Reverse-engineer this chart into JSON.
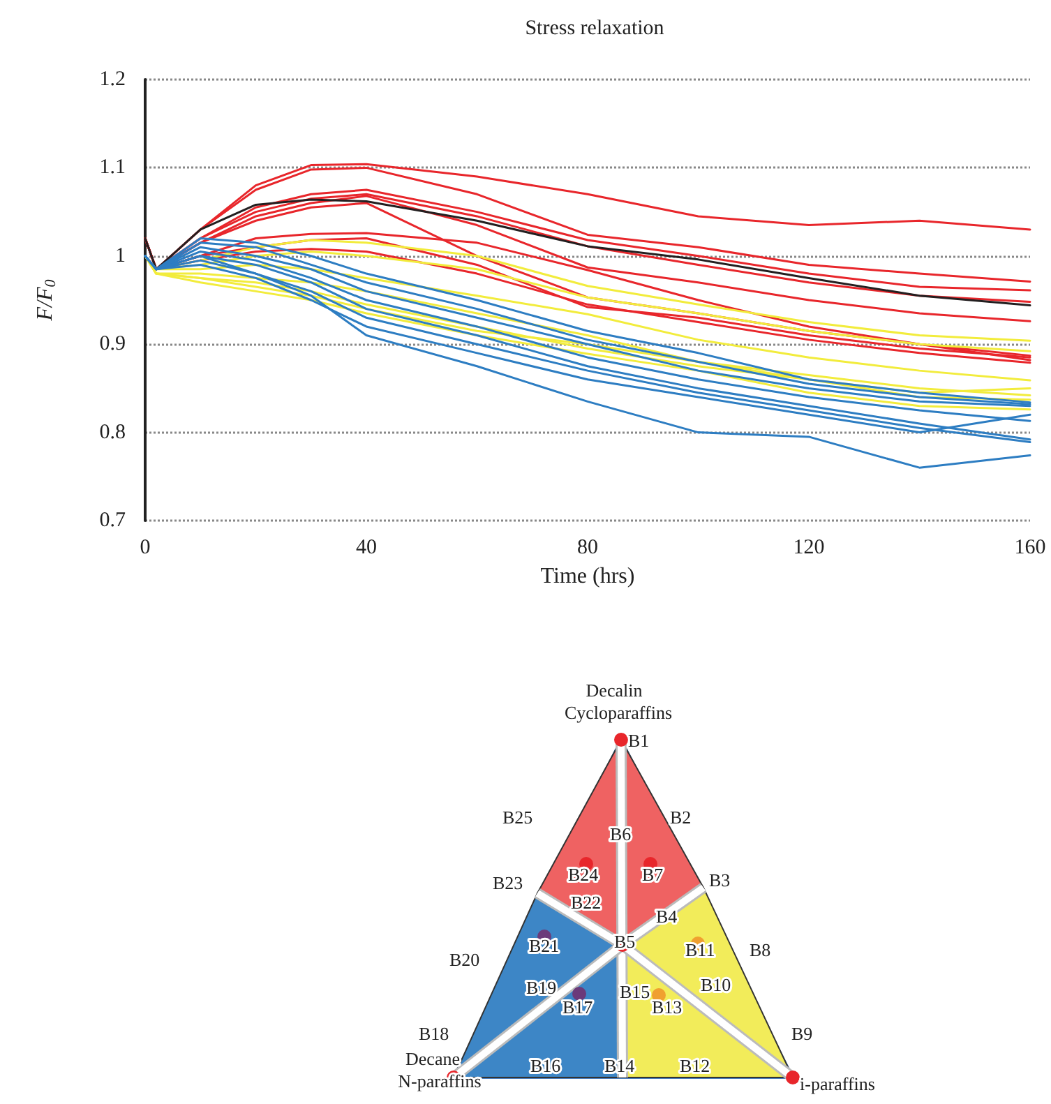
{
  "chart_data": [
    {
      "type": "line",
      "title": "Stress relaxation",
      "xlabel": "Time (hrs)",
      "ylabel": "F/F$_{0}$",
      "x": [
        0,
        2,
        10,
        20,
        30,
        40,
        60,
        80,
        100,
        120,
        140,
        160
      ],
      "xlim": [
        0,
        160
      ],
      "xticks": [
        0,
        40,
        80,
        120,
        160
      ],
      "ylim": [
        0.7,
        1.2
      ],
      "yticks": [
        0.7,
        0.8,
        0.9,
        1,
        1.1,
        1.2
      ],
      "grid": "y",
      "line_style": "solid",
      "marker": "none",
      "series": [
        {
          "color": "#e8262b",
          "values": [
            1.02,
            0.985,
            1.03,
            1.08,
            1.103,
            1.104,
            1.09,
            1.07,
            1.045,
            1.035,
            1.04,
            1.03
          ]
        },
        {
          "color": "#e8262b",
          "values": [
            1.02,
            0.985,
            1.03,
            1.075,
            1.098,
            1.1,
            1.07,
            1.024,
            1.01,
            0.99,
            0.98,
            0.971
          ]
        },
        {
          "color": "#e8262b",
          "values": [
            1.02,
            0.985,
            1.02,
            1.055,
            1.07,
            1.075,
            1.05,
            1.018,
            1.0,
            0.98,
            0.965,
            0.961
          ]
        },
        {
          "color": "#e8262b",
          "values": [
            1.02,
            0.985,
            1.02,
            1.05,
            1.065,
            1.07,
            1.045,
            1.011,
            0.99,
            0.97,
            0.955,
            0.948
          ]
        },
        {
          "color": "#e8262b",
          "values": [
            1.02,
            0.985,
            1.015,
            1.045,
            1.06,
            1.068,
            1.035,
            0.987,
            0.97,
            0.95,
            0.935,
            0.926
          ]
        },
        {
          "color": "#e8262b",
          "values": [
            1.02,
            0.985,
            1.0,
            1.02,
            1.025,
            1.026,
            1.015,
            0.984,
            0.95,
            0.92,
            0.9,
            0.887
          ]
        },
        {
          "color": "#e8262b",
          "values": [
            1.02,
            0.985,
            1.015,
            1.04,
            1.055,
            1.06,
            1.0,
            0.953,
            0.935,
            0.915,
            0.9,
            0.882
          ]
        },
        {
          "color": "#e8262b",
          "values": [
            1.02,
            0.985,
            0.995,
            1.005,
            1.008,
            1.005,
            0.98,
            0.945,
            0.925,
            0.905,
            0.89,
            0.879
          ]
        },
        {
          "color": "#e8262b",
          "values": [
            1.02,
            0.985,
            1.0,
            1.01,
            1.018,
            1.02,
            0.99,
            0.942,
            0.93,
            0.91,
            0.895,
            0.885
          ]
        },
        {
          "color": "#231f20",
          "values": [
            1.02,
            0.985,
            1.03,
            1.058,
            1.064,
            1.062,
            1.04,
            1.011,
            0.996,
            0.975,
            0.955,
            0.944
          ]
        },
        {
          "color": "#f2ec3c",
          "values": [
            1.0,
            0.985,
            0.995,
            1.01,
            1.018,
            1.015,
            1.0,
            0.966,
            0.945,
            0.925,
            0.91,
            0.904
          ]
        },
        {
          "color": "#f2ec3c",
          "values": [
            1.0,
            0.985,
            0.99,
            1.0,
            1.005,
            1.0,
            0.985,
            0.953,
            0.935,
            0.915,
            0.9,
            0.892
          ]
        },
        {
          "color": "#f2ec3c",
          "values": [
            1.0,
            0.985,
            0.985,
            0.99,
            0.985,
            0.975,
            0.955,
            0.934,
            0.905,
            0.885,
            0.87,
            0.859
          ]
        },
        {
          "color": "#f2ec3c",
          "values": [
            1.0,
            0.98,
            0.98,
            0.975,
            0.97,
            0.96,
            0.935,
            0.91,
            0.88,
            0.865,
            0.85,
            0.842
          ]
        },
        {
          "color": "#f2ec3c",
          "values": [
            1.0,
            0.98,
            0.975,
            0.97,
            0.96,
            0.945,
            0.92,
            0.895,
            0.875,
            0.86,
            0.84,
            0.837
          ]
        },
        {
          "color": "#f2ec3c",
          "values": [
            1.0,
            0.98,
            0.97,
            0.96,
            0.95,
            0.935,
            0.91,
            0.889,
            0.87,
            0.845,
            0.83,
            0.826
          ]
        },
        {
          "color": "#f2ec3c",
          "values": [
            1.0,
            0.98,
            0.975,
            0.965,
            0.955,
            0.94,
            0.915,
            0.9,
            0.88,
            0.86,
            0.845,
            0.85
          ]
        },
        {
          "color": "#2d7dc2",
          "values": [
            1.0,
            0.985,
            1.02,
            1.015,
            1.0,
            0.98,
            0.95,
            0.915,
            0.89,
            0.86,
            0.845,
            0.834
          ]
        },
        {
          "color": "#2d7dc2",
          "values": [
            1.0,
            0.985,
            1.015,
            1.01,
            0.99,
            0.97,
            0.94,
            0.905,
            0.88,
            0.855,
            0.84,
            0.832
          ]
        },
        {
          "color": "#2d7dc2",
          "values": [
            1.0,
            0.985,
            1.01,
            1.0,
            0.985,
            0.96,
            0.93,
            0.9,
            0.87,
            0.85,
            0.835,
            0.83
          ]
        },
        {
          "color": "#2d7dc2",
          "values": [
            1.0,
            0.985,
            1.005,
            0.995,
            0.975,
            0.95,
            0.92,
            0.885,
            0.86,
            0.84,
            0.825,
            0.813
          ]
        },
        {
          "color": "#2d7dc2",
          "values": [
            1.0,
            0.985,
            1.0,
            0.99,
            0.97,
            0.94,
            0.91,
            0.875,
            0.85,
            0.83,
            0.81,
            0.792
          ]
        },
        {
          "color": "#2d7dc2",
          "values": [
            1.0,
            0.985,
            0.995,
            0.98,
            0.96,
            0.93,
            0.9,
            0.87,
            0.845,
            0.825,
            0.805,
            0.789
          ]
        },
        {
          "color": "#2d7dc2",
          "values": [
            1.0,
            0.985,
            0.99,
            0.975,
            0.95,
            0.92,
            0.89,
            0.86,
            0.84,
            0.82,
            0.8,
            0.82
          ]
        },
        {
          "color": "#2d7dc2",
          "values": [
            1.0,
            0.985,
            1.0,
            0.98,
            0.955,
            0.91,
            0.875,
            0.835,
            0.8,
            0.795,
            0.76,
            0.774
          ]
        }
      ]
    },
    {
      "type": "other",
      "annotations": [
        "Decalin",
        "Cycloparaffins",
        "B1",
        "B2",
        "B3",
        "B4",
        "B5",
        "B6",
        "B7",
        "B8",
        "B9",
        "B10",
        "B11",
        "B12",
        "B13",
        "B14",
        "B15",
        "B16",
        "B17",
        "B18",
        "B19",
        "B20",
        "B21",
        "B22",
        "B23",
        "B24",
        "B25",
        "Decane",
        "N-paraffins",
        "i-paraffins"
      ]
    }
  ]
}
